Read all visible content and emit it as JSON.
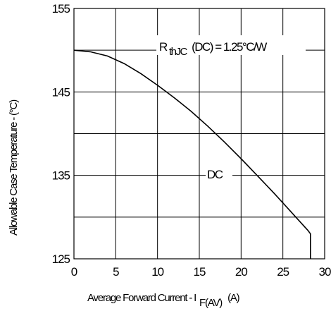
{
  "chart_data": {
    "type": "line",
    "xlabel": "Average Forward Current - I",
    "xlabel_sub": "F(AV)",
    "xlabel_unit": "(A)",
    "ylabel": "Allowable Case Temperature - (°C)",
    "xlim": [
      0,
      30
    ],
    "ylim": [
      125,
      155
    ],
    "x_ticks": [
      "0",
      "5",
      "10",
      "15",
      "20",
      "25",
      "30"
    ],
    "y_ticks": [
      "125",
      "135",
      "145",
      "155"
    ],
    "grid": true,
    "annotations": {
      "rth_main": "R",
      "rth_sub": "thJC",
      "rth_rest": "(DC) = 1.25°C/W",
      "series_label": "DC"
    },
    "series": [
      {
        "name": "DC",
        "x": [
          0,
          2,
          4,
          6,
          8,
          10,
          12,
          14,
          16,
          18,
          20,
          22,
          24,
          26,
          28,
          28.3,
          28.3
        ],
        "y": [
          150,
          149.8,
          149.3,
          148.4,
          147.2,
          145.8,
          144.3,
          142.7,
          140.9,
          139.0,
          137.0,
          134.9,
          132.8,
          130.6,
          128.4,
          128.0,
          125
        ]
      }
    ]
  }
}
